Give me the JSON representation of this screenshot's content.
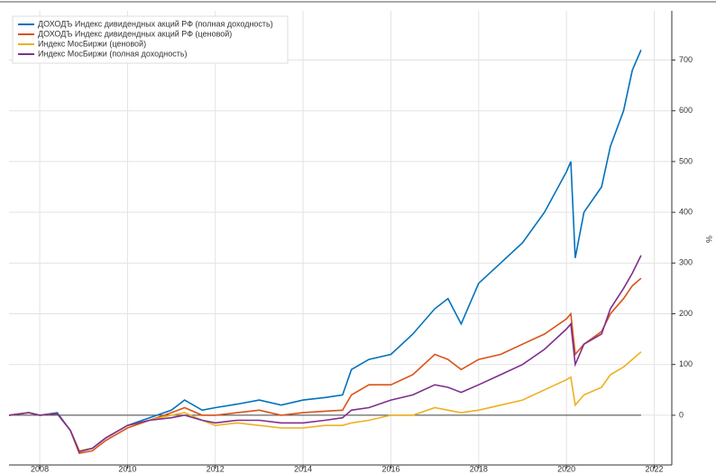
{
  "chart_data": {
    "type": "line",
    "y_axis_label": "%",
    "x": [
      2007.3,
      2007.75,
      2008.0,
      2008.4,
      2008.7,
      2008.9,
      2009.2,
      2009.5,
      2010.0,
      2010.5,
      2011.0,
      2011.3,
      2011.7,
      2012.0,
      2012.5,
      2013.0,
      2013.5,
      2014.0,
      2014.5,
      2014.9,
      2015.1,
      2015.5,
      2016.0,
      2016.5,
      2017.0,
      2017.3,
      2017.6,
      2018.0,
      2018.5,
      2019.0,
      2019.5,
      2020.0,
      2020.1,
      2020.2,
      2020.4,
      2020.8,
      2021.0,
      2021.3,
      2021.5,
      2021.7
    ],
    "series": [
      {
        "name": "ДОХОДЪ Индекс дивидендных акций РФ (полная доходность)",
        "color": "#0072bd",
        "values": [
          0,
          5,
          0,
          5,
          -30,
          -70,
          -65,
          -45,
          -20,
          -5,
          10,
          30,
          10,
          15,
          22,
          30,
          20,
          30,
          35,
          40,
          90,
          110,
          120,
          160,
          210,
          230,
          180,
          260,
          300,
          340,
          400,
          480,
          500,
          310,
          400,
          450,
          530,
          600,
          680,
          720
        ]
      },
      {
        "name": "ДОХОДЪ Индекс дивидендных акций РФ (ценовой)",
        "color": "#d95319",
        "values": [
          0,
          5,
          0,
          3,
          -30,
          -75,
          -70,
          -50,
          -25,
          -10,
          5,
          15,
          0,
          0,
          5,
          10,
          0,
          5,
          8,
          10,
          40,
          60,
          60,
          80,
          120,
          110,
          90,
          110,
          120,
          140,
          160,
          190,
          200,
          120,
          140,
          165,
          200,
          230,
          255,
          270
        ]
      },
      {
        "name": "Индекс МосБиржи (ценовой)",
        "color": "#edb120",
        "values": [
          0,
          5,
          0,
          3,
          -30,
          -70,
          -65,
          -45,
          -20,
          -10,
          0,
          5,
          -10,
          -20,
          -15,
          -20,
          -25,
          -25,
          -20,
          -20,
          -15,
          -10,
          0,
          0,
          15,
          10,
          5,
          10,
          20,
          30,
          50,
          70,
          75,
          20,
          40,
          55,
          80,
          95,
          110,
          125
        ]
      },
      {
        "name": "Индекс МосБиржи (полная доходность)",
        "color": "#7e2f8e",
        "values": [
          0,
          5,
          0,
          3,
          -30,
          -72,
          -65,
          -45,
          -20,
          -10,
          -5,
          0,
          -10,
          -15,
          -10,
          -10,
          -15,
          -15,
          -10,
          -5,
          10,
          15,
          30,
          40,
          60,
          55,
          45,
          60,
          80,
          100,
          130,
          170,
          180,
          100,
          140,
          160,
          210,
          250,
          280,
          315
        ]
      }
    ],
    "xlim": [
      2007.3,
      2022.4
    ],
    "xticks": [
      2008,
      2010,
      2012,
      2014,
      2016,
      2018,
      2020,
      2022
    ],
    "ylim": [
      -98,
      797
    ],
    "yticks": [
      0,
      100,
      200,
      300,
      400,
      500,
      600,
      700
    ],
    "grid": true,
    "legend": "upper left"
  }
}
